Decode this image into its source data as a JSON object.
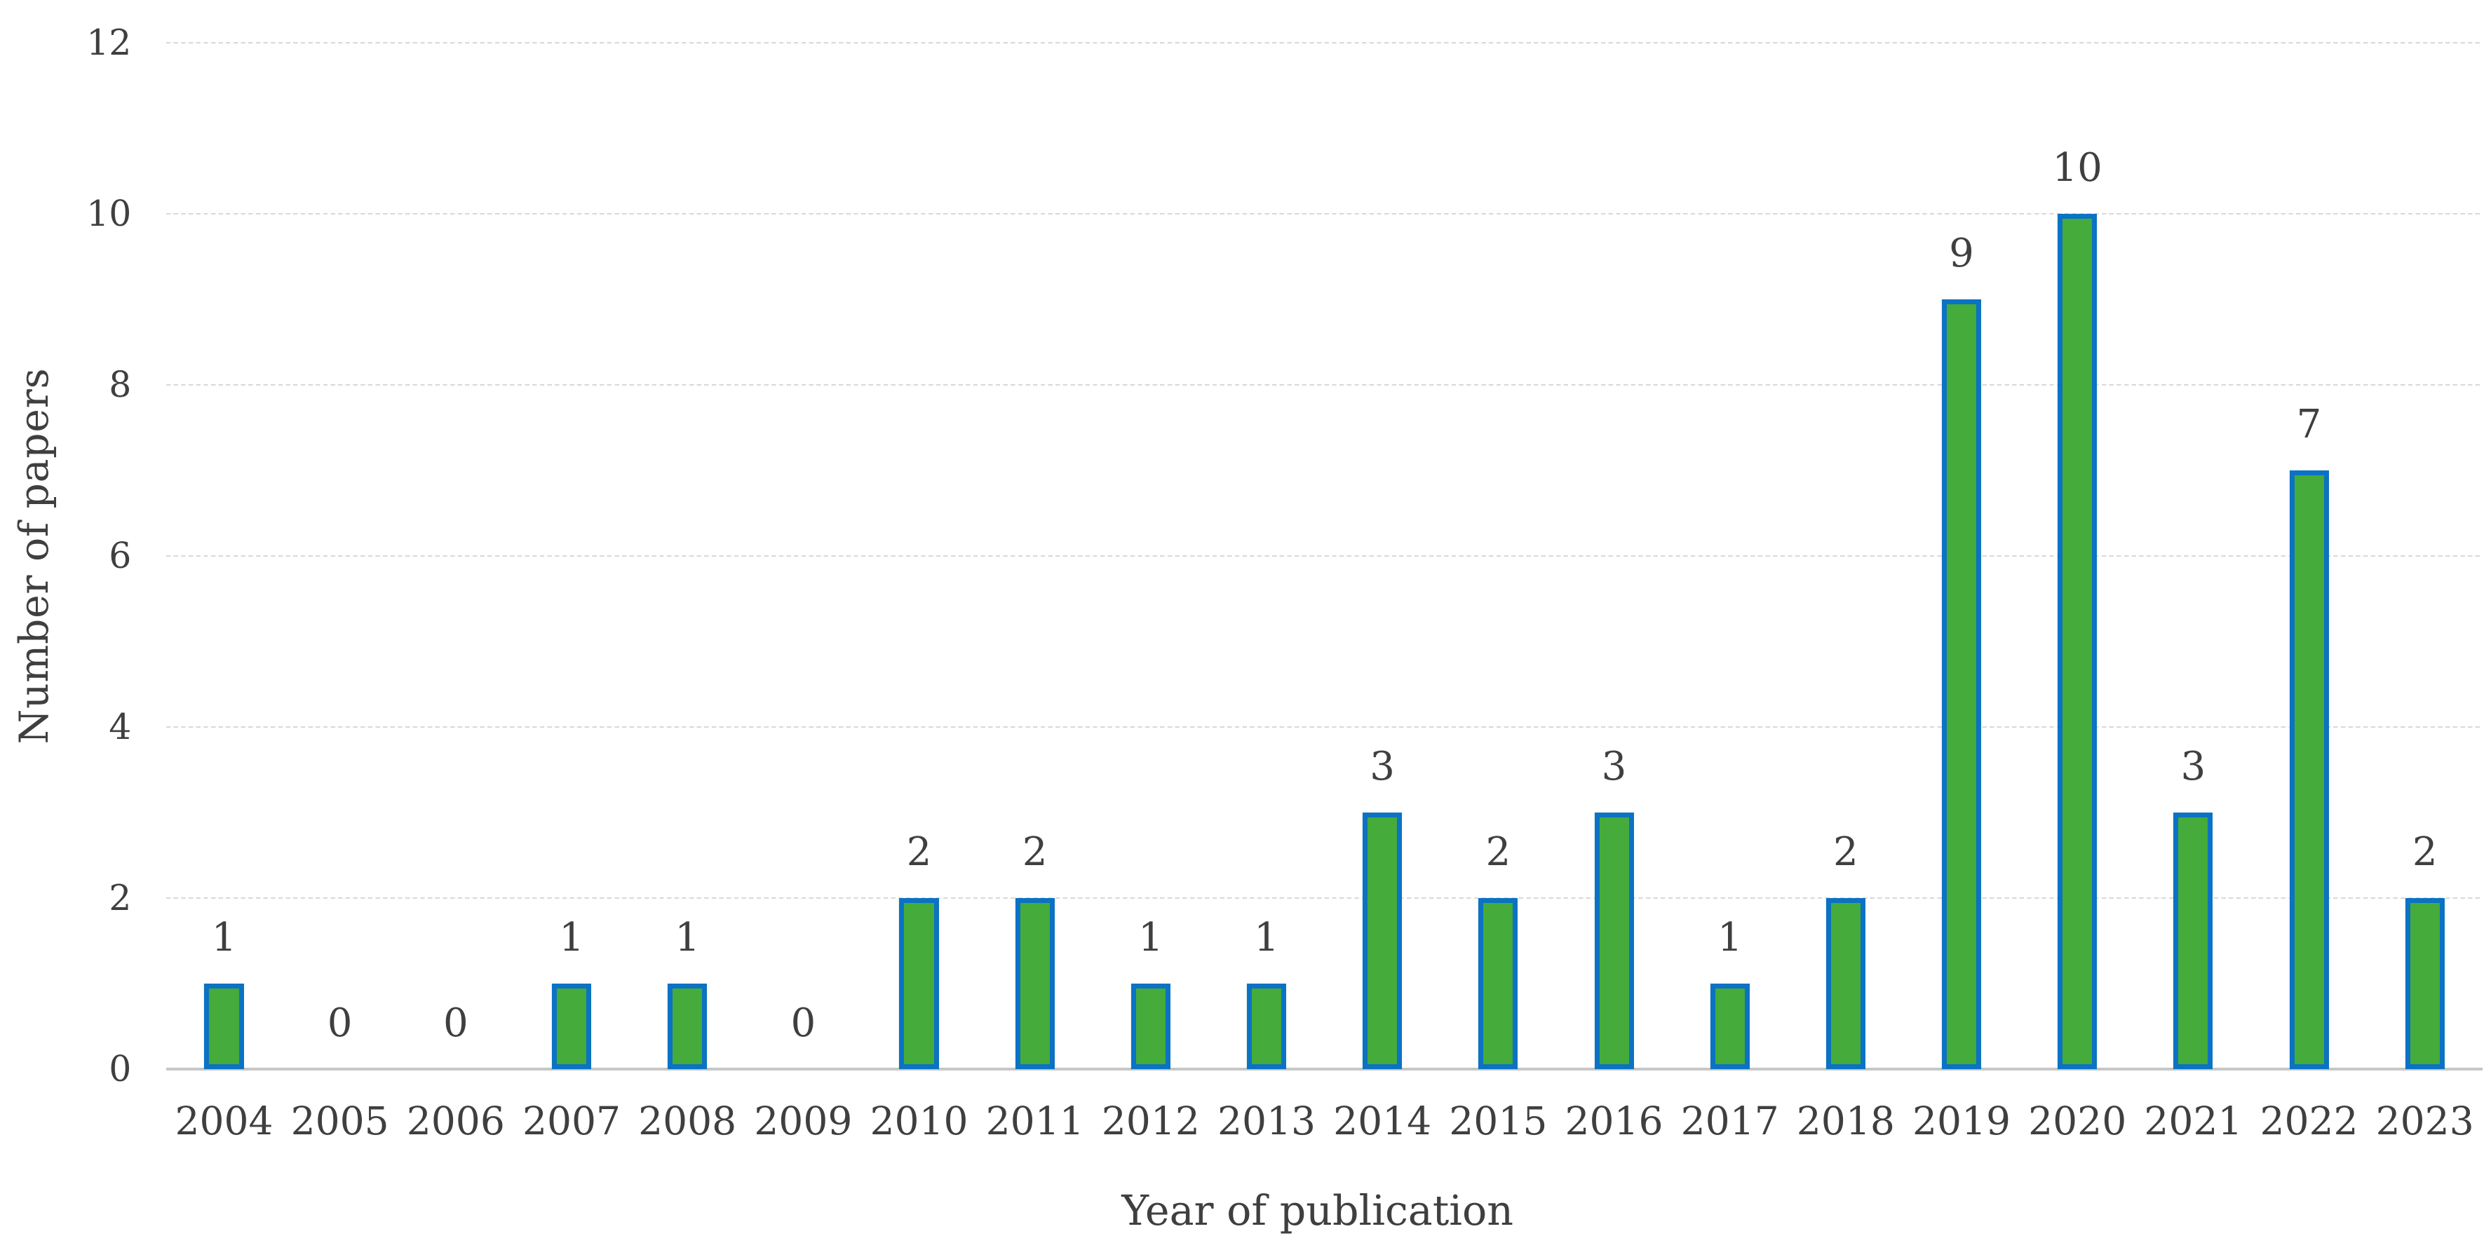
{
  "chart_data": {
    "type": "bar",
    "title": "",
    "categories": [
      "2004",
      "2005",
      "2006",
      "2007",
      "2008",
      "2009",
      "2010",
      "2011",
      "2012",
      "2013",
      "2014",
      "2015",
      "2016",
      "2017",
      "2018",
      "2019",
      "2020",
      "2021",
      "2022",
      "2023"
    ],
    "values": [
      1,
      0,
      0,
      1,
      1,
      0,
      2,
      2,
      1,
      1,
      3,
      2,
      3,
      1,
      2,
      9,
      10,
      3,
      7,
      2
    ],
    "xlabel": "Year of publication",
    "ylabel": "Number of papers",
    "ylim": [
      0,
      12
    ],
    "yticks": [
      0,
      2,
      4,
      6,
      8,
      10,
      12
    ],
    "grid": "horizontal-dashed",
    "legend": "none",
    "data_labels": "outside-end",
    "colors": {
      "bar_fill": "#45AB3A",
      "bar_border": "#0B72C4",
      "gridline": "#D8D8D8",
      "axis_line": "#C6C6C6",
      "text": "#3F3F3F",
      "background": "#FFFFFF"
    }
  }
}
